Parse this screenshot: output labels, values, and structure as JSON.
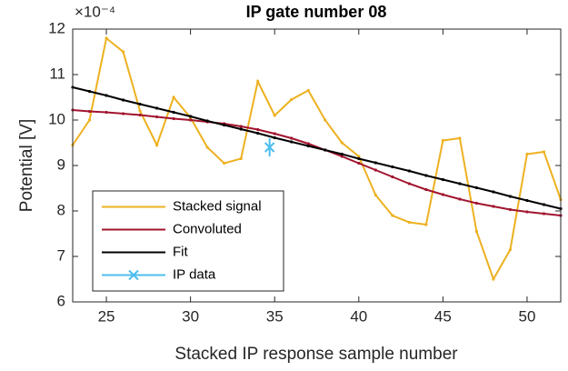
{
  "chart_data": {
    "type": "line",
    "title": "IP gate number 08",
    "x_label": "Stacked IP response sample number",
    "y_label": "Potential [V]",
    "y_multiplier": "×10⁻⁴",
    "x": [
      23,
      24,
      25,
      26,
      27,
      28,
      29,
      30,
      31,
      32,
      33,
      34,
      35,
      36,
      37,
      38,
      39,
      40,
      41,
      42,
      43,
      44,
      45,
      46,
      47,
      48,
      49,
      50,
      51,
      52
    ],
    "series": [
      {
        "name": "Stacked signal",
        "color": "#EDB120",
        "values": [
          9.45,
          10.0,
          11.8,
          11.5,
          10.2,
          9.45,
          10.5,
          10.05,
          9.4,
          9.05,
          9.15,
          10.85,
          10.1,
          10.45,
          10.65,
          10.0,
          9.5,
          9.2,
          8.35,
          7.9,
          7.75,
          7.7,
          9.55,
          9.6,
          7.55,
          6.5,
          7.15,
          9.25,
          9.3,
          8.25
        ]
      },
      {
        "name": "Convoluted",
        "color": "#A2142F",
        "values": [
          10.22,
          10.19,
          10.17,
          10.14,
          10.11,
          10.07,
          10.03,
          10.0,
          9.96,
          9.92,
          9.86,
          9.79,
          9.7,
          9.6,
          9.48,
          9.34,
          9.2,
          9.05,
          8.9,
          8.75,
          8.6,
          8.47,
          8.36,
          8.26,
          8.17,
          8.1,
          8.03,
          7.98,
          7.94,
          7.9
        ]
      },
      {
        "name": "Fit",
        "color": "#000000",
        "values": [
          10.72,
          10.63,
          10.54,
          10.44,
          10.35,
          10.26,
          10.17,
          10.08,
          9.98,
          9.89,
          9.8,
          9.71,
          9.61,
          9.52,
          9.43,
          9.34,
          9.25,
          9.15,
          9.06,
          8.97,
          8.88,
          8.78,
          8.69,
          8.6,
          8.51,
          8.42,
          8.32,
          8.23,
          8.14,
          8.05
        ]
      },
      {
        "name": "IP data",
        "color": "#4DBEEE",
        "x": [
          34.7
        ],
        "values": [
          9.4
        ],
        "errors": [
          0.2
        ]
      }
    ],
    "xlim": [
      23,
      52
    ],
    "xticks": [
      25,
      30,
      35,
      40,
      45,
      50
    ],
    "ylim": [
      6,
      12
    ],
    "yticks": [
      6,
      7,
      8,
      9,
      10,
      11,
      12
    ],
    "legend": "southwest"
  }
}
